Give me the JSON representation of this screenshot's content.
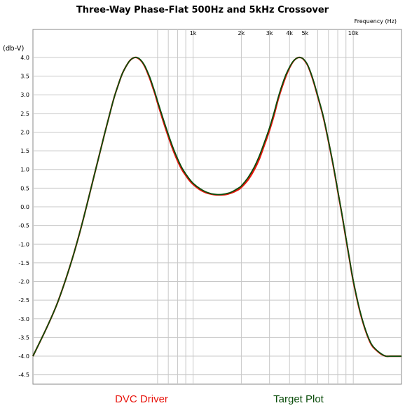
{
  "chart_data": {
    "type": "line",
    "title": "Three-Way Phase-Flat 500Hz and 5kHz Crossover",
    "xlabel": "Frequency   (Hz)",
    "ylabel": "(db-V)",
    "xscale": "log",
    "xlim": [
      100,
      20000
    ],
    "ylim": [
      -4.75,
      4.75
    ],
    "xticks": [
      {
        "value": 1000,
        "label": "1k"
      },
      {
        "value": 2000,
        "label": "2k"
      },
      {
        "value": 3000,
        "label": "3k"
      },
      {
        "value": 4000,
        "label": "4k"
      },
      {
        "value": 5000,
        "label": "5k"
      },
      {
        "value": 10000,
        "label": "10k"
      }
    ],
    "xgrid_minor": [
      600,
      700,
      800,
      900,
      6000,
      7000,
      8000,
      9000
    ],
    "yticks": [
      "4.0",
      "3.5",
      "3.0",
      "2.5",
      "2.0",
      "1.5",
      "1.0",
      "0.5",
      "0.0",
      "-0.5",
      "-1.0",
      "-1.5",
      "-2.0",
      "-2.5",
      "-3.0",
      "-3.5",
      "-4.0",
      "-4.5"
    ],
    "ytick_values": [
      4.0,
      3.5,
      3.0,
      2.5,
      2.0,
      1.5,
      1.0,
      0.5,
      0.0,
      -0.5,
      -1.0,
      -1.5,
      -2.0,
      -2.5,
      -3.0,
      -3.5,
      -4.0,
      -4.5
    ],
    "grid": true,
    "legend_position": "bottom",
    "series": [
      {
        "name": "DVC Driver",
        "color": "#e8140c",
        "x": [
          100,
          120,
          140,
          160,
          180,
          200,
          220,
          240,
          260,
          280,
          300,
          320,
          340,
          360,
          380,
          400,
          420,
          440,
          460,
          480,
          500,
          520,
          540,
          560,
          580,
          600,
          650,
          700,
          750,
          800,
          850,
          900,
          950,
          1000,
          1100,
          1200,
          1300,
          1400,
          1500,
          1600,
          1700,
          1800,
          1900,
          2000,
          2200,
          2400,
          2600,
          2800,
          3000,
          3200,
          3400,
          3600,
          3800,
          4000,
          4200,
          4400,
          4600,
          4800,
          5000,
          5200,
          5400,
          5600,
          5800,
          6000,
          6500,
          7000,
          7500,
          8000,
          8500,
          9000,
          9500,
          10000,
          11000,
          12000,
          13000,
          14000,
          15000,
          16000,
          17000,
          18000,
          19000,
          20000
        ],
        "y": [
          -4.0,
          -3.3,
          -2.65,
          -1.95,
          -1.25,
          -0.55,
          0.15,
          0.8,
          1.4,
          1.95,
          2.45,
          2.9,
          3.25,
          3.55,
          3.75,
          3.9,
          3.98,
          4.0,
          3.96,
          3.88,
          3.75,
          3.58,
          3.4,
          3.2,
          3.0,
          2.78,
          2.3,
          1.88,
          1.52,
          1.23,
          1.0,
          0.84,
          0.7,
          0.6,
          0.46,
          0.38,
          0.34,
          0.32,
          0.32,
          0.33,
          0.36,
          0.4,
          0.45,
          0.52,
          0.72,
          0.98,
          1.3,
          1.68,
          2.05,
          2.45,
          2.88,
          3.22,
          3.5,
          3.72,
          3.88,
          3.97,
          4.0,
          3.98,
          3.9,
          3.78,
          3.6,
          3.4,
          3.18,
          2.95,
          2.4,
          1.75,
          1.1,
          0.42,
          -0.22,
          -0.85,
          -1.45,
          -2.0,
          -2.8,
          -3.35,
          -3.7,
          -3.85,
          -3.95,
          -4.0,
          -4.0,
          -4.0,
          -4.0,
          -4.0
        ]
      },
      {
        "name": "Target Plot",
        "color": "#0b4d0b",
        "x": [
          100,
          120,
          140,
          160,
          180,
          200,
          220,
          240,
          260,
          280,
          300,
          320,
          340,
          360,
          380,
          400,
          420,
          440,
          460,
          480,
          500,
          520,
          540,
          560,
          580,
          600,
          650,
          700,
          750,
          800,
          850,
          900,
          950,
          1000,
          1100,
          1200,
          1300,
          1400,
          1500,
          1600,
          1700,
          1800,
          1900,
          2000,
          2200,
          2400,
          2600,
          2800,
          3000,
          3200,
          3400,
          3600,
          3800,
          4000,
          4200,
          4400,
          4600,
          4800,
          5000,
          5200,
          5400,
          5600,
          5800,
          6000,
          6500,
          7000,
          7500,
          8000,
          8500,
          9000,
          9500,
          10000,
          11000,
          12000,
          13000,
          14000,
          15000,
          16000,
          17000,
          18000,
          19000,
          20000
        ],
        "y": [
          -4.0,
          -3.3,
          -2.65,
          -1.95,
          -1.25,
          -0.55,
          0.15,
          0.8,
          1.4,
          1.95,
          2.45,
          2.9,
          3.25,
          3.55,
          3.75,
          3.9,
          3.98,
          4.0,
          3.97,
          3.89,
          3.77,
          3.61,
          3.44,
          3.24,
          3.04,
          2.83,
          2.36,
          1.94,
          1.58,
          1.29,
          1.05,
          0.88,
          0.74,
          0.63,
          0.49,
          0.4,
          0.35,
          0.33,
          0.33,
          0.35,
          0.38,
          0.43,
          0.49,
          0.56,
          0.78,
          1.05,
          1.38,
          1.75,
          2.12,
          2.52,
          2.93,
          3.27,
          3.54,
          3.74,
          3.89,
          3.97,
          4.0,
          3.98,
          3.91,
          3.79,
          3.62,
          3.42,
          3.2,
          2.97,
          2.42,
          1.77,
          1.12,
          0.44,
          -0.2,
          -0.83,
          -1.43,
          -1.98,
          -2.78,
          -3.33,
          -3.68,
          -3.84,
          -3.94,
          -4.0,
          -4.0,
          -4.0,
          -4.0,
          -4.0
        ]
      }
    ]
  },
  "freq_axis_label": "Frequency   (Hz)",
  "legend_labels": [
    "DVC Driver",
    "Target Plot"
  ]
}
